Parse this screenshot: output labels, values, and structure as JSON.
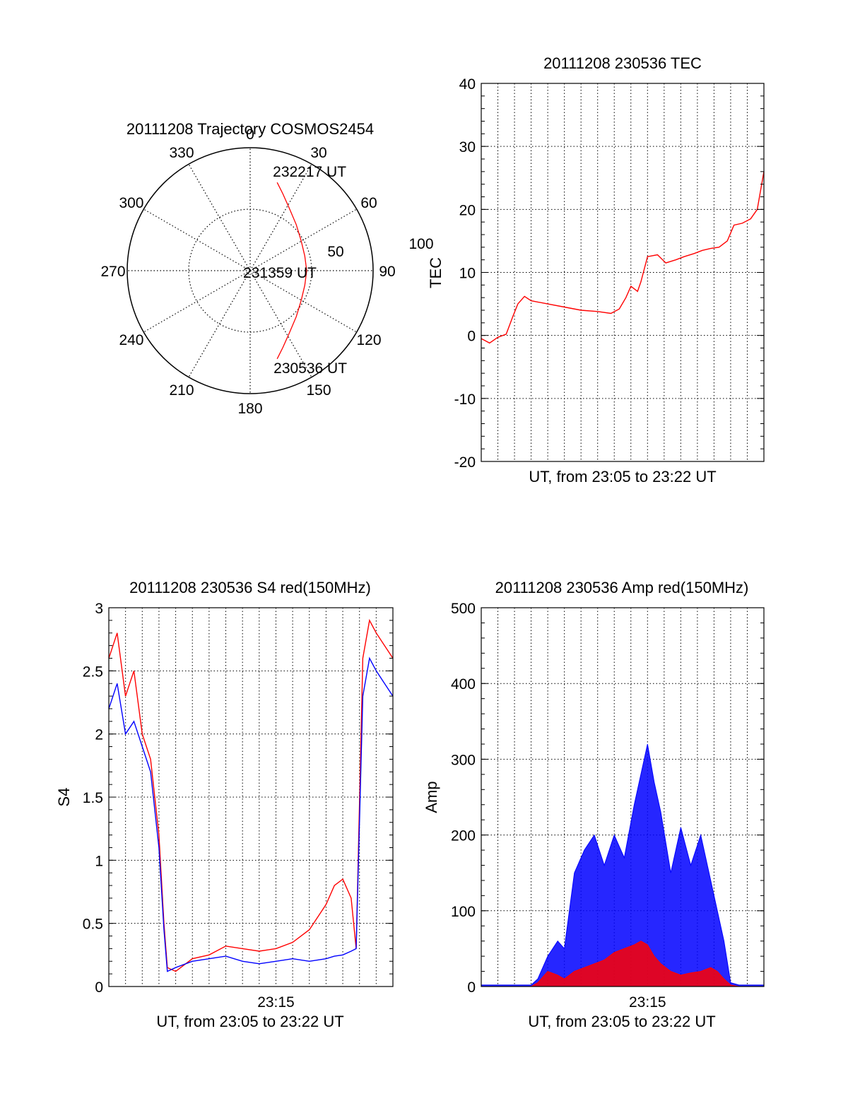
{
  "chart_data": [
    {
      "type": "polar",
      "title": "20111208 Trajectory COSMOS2454",
      "angle_labels": [
        "0",
        "30",
        "60",
        "90",
        "120",
        "150",
        "180",
        "210",
        "240",
        "270",
        "300",
        "330"
      ],
      "radial_labels": [
        "50",
        "100"
      ],
      "rlim": [
        0,
        100
      ],
      "grid": true,
      "trajectory": {
        "color": "#ff0000",
        "points": [
          [
            17,
            75
          ],
          [
            23,
            68
          ],
          [
            32,
            60
          ],
          [
            45,
            53
          ],
          [
            60,
            48
          ],
          [
            75,
            46
          ],
          [
            90,
            46
          ],
          [
            105,
            46
          ],
          [
            120,
            48
          ],
          [
            135,
            53
          ],
          [
            148,
            60
          ],
          [
            157,
            68
          ],
          [
            163,
            75
          ]
        ]
      },
      "annotations": [
        {
          "text": "232217 UT",
          "azimuth": 17,
          "r": 75
        },
        {
          "text": "231359 UT",
          "azimuth": 90,
          "r": 46
        },
        {
          "text": "230536 UT",
          "azimuth": 163,
          "r": 75
        }
      ]
    },
    {
      "type": "line",
      "title": "20111208 230536 TEC",
      "xlabel": "UT, from 23:05 to 23:22 UT",
      "ylabel": "TEC",
      "xlim": [
        0,
        17
      ],
      "ylim": [
        -20,
        40
      ],
      "yticks": [
        "-20",
        "-10",
        "0",
        "10",
        "20",
        "30",
        "40"
      ],
      "grid": true,
      "series": [
        {
          "color": "#ff0000",
          "x": [
            0,
            0.5,
            1.0,
            1.5,
            1.9,
            2.2,
            2.6,
            3.0,
            4.0,
            5.0,
            6.0,
            7.0,
            7.8,
            8.3,
            8.7,
            9.0,
            9.4,
            9.6,
            10.0,
            10.6,
            11.1,
            11.7,
            12.2,
            12.8,
            13.3,
            13.8,
            14.3,
            14.8,
            15.2,
            15.7,
            16.2,
            16.6,
            17.0
          ],
          "y": [
            -0.5,
            -1.2,
            -0.3,
            0.2,
            3.0,
            5.0,
            6.2,
            5.5,
            5.0,
            4.5,
            4.0,
            3.8,
            3.5,
            4.2,
            6.0,
            7.8,
            7.0,
            8.5,
            12.5,
            12.8,
            11.5,
            12.0,
            12.5,
            13.0,
            13.5,
            13.8,
            14.0,
            15.0,
            17.5,
            17.8,
            18.5,
            20.0,
            26.0
          ]
        }
      ]
    },
    {
      "type": "line",
      "title": "20111208 230536 S4 red(150MHz)",
      "xlabel": "UT, from 23:05 to 23:22 UT",
      "ylabel": "S4",
      "xlim": [
        0,
        17
      ],
      "xticks": [
        {
          "value": 10,
          "label": "23:15"
        }
      ],
      "ylim": [
        0,
        3
      ],
      "yticks": [
        "0",
        "0.5",
        "1",
        "1.5",
        "2",
        "2.5",
        "3"
      ],
      "grid": true,
      "series": [
        {
          "color": "#ff0000",
          "x": [
            0,
            0.5,
            1.0,
            1.5,
            2.0,
            2.5,
            3.0,
            3.3,
            3.5,
            4.0,
            5.0,
            6.0,
            7.0,
            8.0,
            9.0,
            10.0,
            11.0,
            12.0,
            13.0,
            13.5,
            14.0,
            14.5,
            14.8,
            15.2,
            15.6,
            16.0,
            16.5,
            17.0
          ],
          "y": [
            2.6,
            2.8,
            2.3,
            2.5,
            2.0,
            1.8,
            1.2,
            0.5,
            0.15,
            0.12,
            0.22,
            0.25,
            0.32,
            0.3,
            0.28,
            0.3,
            0.35,
            0.45,
            0.65,
            0.8,
            0.85,
            0.7,
            0.3,
            2.6,
            2.9,
            2.8,
            2.7,
            2.6
          ]
        },
        {
          "color": "#0000ff",
          "x": [
            0,
            0.5,
            1.0,
            1.5,
            2.0,
            2.5,
            3.0,
            3.3,
            3.5,
            4.0,
            5.0,
            6.0,
            7.0,
            8.0,
            9.0,
            10.0,
            11.0,
            12.0,
            13.0,
            13.5,
            14.0,
            14.5,
            14.8,
            15.2,
            15.6,
            16.0,
            16.5,
            17.0
          ],
          "y": [
            2.2,
            2.4,
            2.0,
            2.1,
            1.9,
            1.7,
            1.1,
            0.45,
            0.12,
            0.15,
            0.2,
            0.22,
            0.24,
            0.2,
            0.18,
            0.2,
            0.22,
            0.2,
            0.22,
            0.24,
            0.25,
            0.28,
            0.3,
            2.3,
            2.6,
            2.5,
            2.4,
            2.3
          ]
        }
      ]
    },
    {
      "type": "line",
      "title": "20111208 230536 Amp red(150MHz)",
      "xlabel": "UT, from 23:05 to 23:22 UT",
      "ylabel": "Amp",
      "xlim": [
        0,
        17
      ],
      "xticks": [
        {
          "value": 10,
          "label": "23:15"
        }
      ],
      "ylim": [
        0,
        500
      ],
      "yticks": [
        "0",
        "100",
        "200",
        "300",
        "400",
        "500"
      ],
      "grid": true,
      "series": [
        {
          "color": "#0000ff",
          "x": [
            0,
            3.0,
            3.4,
            4.0,
            4.6,
            5.0,
            5.6,
            6.2,
            6.8,
            7.4,
            8.0,
            8.6,
            9.2,
            9.6,
            10.0,
            10.4,
            10.8,
            11.4,
            12.0,
            12.6,
            13.2,
            13.8,
            14.2,
            14.6,
            15.0,
            15.5,
            17.0
          ],
          "y": [
            2,
            2,
            10,
            40,
            60,
            50,
            150,
            180,
            200,
            160,
            200,
            170,
            240,
            280,
            320,
            270,
            230,
            150,
            210,
            160,
            200,
            140,
            100,
            60,
            5,
            2,
            2
          ]
        },
        {
          "color": "#ff0000",
          "x": [
            0,
            3.0,
            3.4,
            4.0,
            4.6,
            5.0,
            5.6,
            6.2,
            6.8,
            7.4,
            8.0,
            8.6,
            9.2,
            9.6,
            10.0,
            10.4,
            10.8,
            11.4,
            12.0,
            12.6,
            13.2,
            13.8,
            14.2,
            14.6,
            15.0,
            15.5,
            17.0
          ],
          "y": [
            0,
            0,
            5,
            20,
            15,
            10,
            20,
            25,
            30,
            35,
            45,
            50,
            55,
            60,
            55,
            40,
            30,
            20,
            15,
            18,
            20,
            25,
            20,
            10,
            2,
            0,
            0
          ]
        }
      ]
    }
  ]
}
